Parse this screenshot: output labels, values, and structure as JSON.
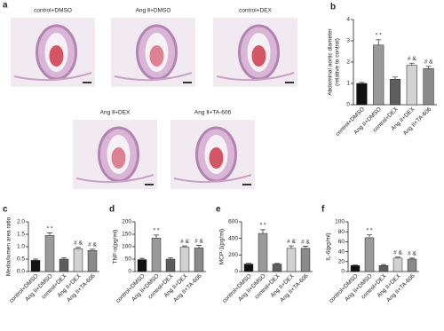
{
  "histology": {
    "panel": "a",
    "images": [
      "control+DMSO",
      "Ang Ⅱ+DMSO",
      "control+DEX",
      "Ang Ⅱ+DEX",
      "Ang Ⅱ+TA-606"
    ]
  },
  "chart_data": [
    {
      "type": "bar",
      "panel": "b",
      "ylabel": [
        "Abdominal aortic diameter",
        "(relative to control)"
      ],
      "categories": [
        "control+DMSO",
        "Ang II+DMSO",
        "control+DEX",
        "Ang II+DEX",
        "Ang II+TA-606"
      ],
      "values": [
        1.0,
        2.8,
        1.2,
        1.85,
        1.7
      ],
      "errors": [
        0.05,
        0.25,
        0.1,
        0.1,
        0.1
      ],
      "value_annotations": [
        null,
        "* *",
        null,
        "# &",
        "# &"
      ],
      "colors": [
        "#111111",
        "#9a9a9a",
        "#5e5e5e",
        "#d2d2d2",
        "#8a8a8a"
      ],
      "ylim": [
        0,
        4
      ],
      "yticks": [
        0,
        1,
        2,
        3,
        4
      ]
    },
    {
      "type": "bar",
      "panel": "c",
      "ylabel": [
        "Media/lumen area ratio"
      ],
      "categories": [
        "control+DMSO",
        "Ang II+DMSO",
        "control+DEX",
        "Ang II+DEX",
        "Ang II+TA-606"
      ],
      "values": [
        0.45,
        1.45,
        0.5,
        0.92,
        0.85
      ],
      "errors": [
        0.05,
        0.1,
        0.06,
        0.05,
        0.05
      ],
      "value_annotations": [
        null,
        "* *",
        null,
        "# &",
        "# &"
      ],
      "colors": [
        "#111111",
        "#9a9a9a",
        "#5e5e5e",
        "#d2d2d2",
        "#8a8a8a"
      ],
      "ylim": [
        0,
        2
      ],
      "yticks": [
        {
          "value": 0,
          "label": "0.0"
        },
        0.5,
        {
          "value": 1,
          "label": "1.0"
        },
        1.5,
        {
          "value": 2,
          "label": "2.0"
        }
      ]
    },
    {
      "type": "bar",
      "panel": "d",
      "ylabel": [
        "TNF-α(pg/ml)"
      ],
      "categories": [
        "control+DMSO",
        "Ang II+DMSO",
        "control+DEX",
        "Ang II+DEX",
        "Ang II+TA-606"
      ],
      "values": [
        48,
        135,
        50,
        98,
        95
      ],
      "errors": [
        5,
        12,
        6,
        5,
        10
      ],
      "value_annotations": [
        null,
        "* *",
        null,
        "# &",
        "# &"
      ],
      "colors": [
        "#111111",
        "#9a9a9a",
        "#5e5e5e",
        "#d2d2d2",
        "#8a8a8a"
      ],
      "ylim": [
        0,
        200
      ],
      "yticks": [
        0,
        50,
        100,
        150,
        200
      ]
    },
    {
      "type": "bar",
      "panel": "e",
      "ylabel": [
        "MCP-1(pg/ml)"
      ],
      "categories": [
        "control+DMSO",
        "Ang II+DMSO",
        "control+DEX",
        "Ang II+DEX",
        "Ang II+TA-606"
      ],
      "values": [
        90,
        460,
        90,
        280,
        280
      ],
      "errors": [
        10,
        45,
        8,
        30,
        25
      ],
      "value_annotations": [
        null,
        "* *",
        null,
        "# &",
        "# &"
      ],
      "colors": [
        "#111111",
        "#9a9a9a",
        "#5e5e5e",
        "#d2d2d2",
        "#8a8a8a"
      ],
      "ylim": [
        0,
        600
      ],
      "yticks": [
        0,
        200,
        400,
        600
      ]
    },
    {
      "type": "bar",
      "panel": "f",
      "ylabel": [
        "IL-6(pg/ml)"
      ],
      "categories": [
        "control+DMSO",
        "Ang II+DMSO",
        "control+DEX",
        "Ang II+DEX",
        "Ang II+TA-606"
      ],
      "values": [
        12,
        68,
        12,
        27,
        25
      ],
      "errors": [
        1,
        6,
        2,
        2,
        2
      ],
      "value_annotations": [
        null,
        "* *",
        null,
        "# &",
        "# &"
      ],
      "colors": [
        "#111111",
        "#9a9a9a",
        "#5e5e5e",
        "#d2d2d2",
        "#8a8a8a"
      ],
      "ylim": [
        0,
        100
      ],
      "yticks": [
        0,
        20,
        40,
        60,
        80,
        100
      ]
    }
  ]
}
